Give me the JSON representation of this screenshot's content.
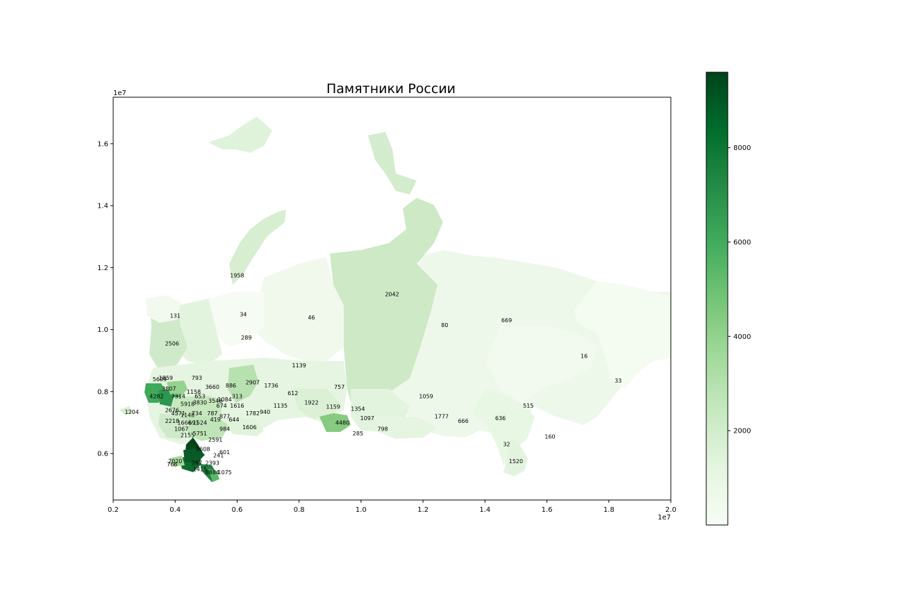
{
  "title": "Памятники России",
  "axes": {
    "x_exponent": "1e7",
    "y_exponent": "1e7",
    "x_ticks": [
      "0.2",
      "0.4",
      "0.6",
      "0.8",
      "1.0",
      "1.2",
      "1.4",
      "1.6",
      "1.8",
      "2.0"
    ],
    "y_ticks": [
      "0.6",
      "0.8",
      "1.0",
      "1.2",
      "1.4",
      "1.6"
    ]
  },
  "colorbar": {
    "ticks": [
      "2000",
      "4000",
      "6000",
      "8000"
    ],
    "min": 0,
    "max": 9600,
    "colormap": "Greens",
    "color_stops": [
      "#f7fcf5",
      "#e5f5e0",
      "#c7e9c0",
      "#a1d99b",
      "#74c476",
      "#41ab5d",
      "#238b45",
      "#006d2c",
      "#00441b"
    ]
  },
  "chart_data": {
    "type": "choropleth",
    "title": "Памятники России",
    "x_range": [
      2000000,
      20000000
    ],
    "y_range": [
      4500000,
      17500000
    ],
    "value_range": [
      0,
      9600
    ],
    "region_values": [
      {
        "value": "1958",
        "x": 6000000.0,
        "y": 11750000.0
      },
      {
        "value": "2042",
        "x": 11000000.0,
        "y": 11150000.0
      },
      {
        "value": "131",
        "x": 4000000.0,
        "y": 10450000.0
      },
      {
        "value": "34",
        "x": 6200000.0,
        "y": 10500000.0
      },
      {
        "value": "46",
        "x": 8400000.0,
        "y": 10400000.0
      },
      {
        "value": "80",
        "x": 12700000.0,
        "y": 10150000.0
      },
      {
        "value": "669",
        "x": 14700000.0,
        "y": 10300000.0
      },
      {
        "value": "289",
        "x": 6300000.0,
        "y": 9750000.0
      },
      {
        "value": "2506",
        "x": 3900000.0,
        "y": 9550000.0
      },
      {
        "value": "16",
        "x": 17200000.0,
        "y": 9150000.0
      },
      {
        "value": "1139",
        "x": 8000000.0,
        "y": 8850000.0
      },
      {
        "value": "33",
        "x": 18300000.0,
        "y": 8350000.0
      },
      {
        "value": "5609",
        "x": 3500000.0,
        "y": 8400000.0
      },
      {
        "value": "1859",
        "x": 3700000.0,
        "y": 8450000.0
      },
      {
        "value": "793",
        "x": 4700000.0,
        "y": 8450000.0
      },
      {
        "value": "2907",
        "x": 6500000.0,
        "y": 8300000.0
      },
      {
        "value": "1736",
        "x": 7100000.0,
        "y": 8200000.0
      },
      {
        "value": "757",
        "x": 9300000.0,
        "y": 8150000.0
      },
      {
        "value": "886",
        "x": 5800000.0,
        "y": 8200000.0
      },
      {
        "value": "3660",
        "x": 5200000.0,
        "y": 8150000.0
      },
      {
        "value": "3807",
        "x": 3800000.0,
        "y": 8100000.0
      },
      {
        "value": "1158",
        "x": 4600000.0,
        "y": 8000000.0
      },
      {
        "value": "612",
        "x": 7800000.0,
        "y": 7950000.0
      },
      {
        "value": "1059",
        "x": 12100000.0,
        "y": 7850000.0
      },
      {
        "value": "4282",
        "x": 3400000.0,
        "y": 7850000.0
      },
      {
        "value": "7314",
        "x": 4100000.0,
        "y": 7850000.0
      },
      {
        "value": "653",
        "x": 4800000.0,
        "y": 7850000.0
      },
      {
        "value": "313",
        "x": 6000000.0,
        "y": 7850000.0
      },
      {
        "value": "1084",
        "x": 5600000.0,
        "y": 7750000.0
      },
      {
        "value": "3546",
        "x": 5300000.0,
        "y": 7700000.0
      },
      {
        "value": "1922",
        "x": 8400000.0,
        "y": 7650000.0
      },
      {
        "value": "5918",
        "x": 4400000.0,
        "y": 7600000.0
      },
      {
        "value": "3830",
        "x": 4800000.0,
        "y": 7650000.0
      },
      {
        "value": "674",
        "x": 5500000.0,
        "y": 7550000.0
      },
      {
        "value": "1616",
        "x": 6000000.0,
        "y": 7550000.0
      },
      {
        "value": "1135",
        "x": 7400000.0,
        "y": 7550000.0
      },
      {
        "value": "1159",
        "x": 9100000.0,
        "y": 7520000.0
      },
      {
        "value": "515",
        "x": 15400000.0,
        "y": 7550000.0
      },
      {
        "value": "1204",
        "x": 2600000.0,
        "y": 7350000.0
      },
      {
        "value": "2676",
        "x": 3900000.0,
        "y": 7400000.0
      },
      {
        "value": "1354",
        "x": 9900000.0,
        "y": 7450000.0
      },
      {
        "value": "4571",
        "x": 4100000.0,
        "y": 7300000.0
      },
      {
        "value": "734",
        "x": 4700000.0,
        "y": 7300000.0
      },
      {
        "value": "787",
        "x": 5200000.0,
        "y": 7300000.0
      },
      {
        "value": "1782",
        "x": 6500000.0,
        "y": 7300000.0
      },
      {
        "value": "940",
        "x": 6900000.0,
        "y": 7350000.0
      },
      {
        "value": "1148",
        "x": 4400000.0,
        "y": 7250000.0
      },
      {
        "value": "877",
        "x": 5600000.0,
        "y": 7200000.0
      },
      {
        "value": "1777",
        "x": 12600000.0,
        "y": 7200000.0
      },
      {
        "value": "636",
        "x": 14500000.0,
        "y": 7150000.0
      },
      {
        "value": "2218",
        "x": 3900000.0,
        "y": 7050000.0
      },
      {
        "value": "1666",
        "x": 4300000.0,
        "y": 7000000.0
      },
      {
        "value": "691",
        "x": 4600000.0,
        "y": 7000000.0
      },
      {
        "value": "1524",
        "x": 4800000.0,
        "y": 7000000.0
      },
      {
        "value": "419",
        "x": 5300000.0,
        "y": 7100000.0
      },
      {
        "value": "644",
        "x": 5900000.0,
        "y": 7100000.0
      },
      {
        "value": "1097",
        "x": 10200000.0,
        "y": 7150000.0
      },
      {
        "value": "666",
        "x": 13300000.0,
        "y": 7050000.0
      },
      {
        "value": "4480",
        "x": 9400000.0,
        "y": 7000000.0
      },
      {
        "value": "1606",
        "x": 6400000.0,
        "y": 6850000.0
      },
      {
        "value": "1067",
        "x": 4200000.0,
        "y": 6800000.0
      },
      {
        "value": "984",
        "x": 5600000.0,
        "y": 6800000.0
      },
      {
        "value": "798",
        "x": 10700000.0,
        "y": 6800000.0
      },
      {
        "value": "2155",
        "x": 4400000.0,
        "y": 6600000.0
      },
      {
        "value": "5751",
        "x": 4800000.0,
        "y": 6650000.0
      },
      {
        "value": "285",
        "x": 9900000.0,
        "y": 6650000.0
      },
      {
        "value": "160",
        "x": 16100000.0,
        "y": 6550000.0
      },
      {
        "value": "2591",
        "x": 5300000.0,
        "y": 6450000.0
      },
      {
        "value": "32",
        "x": 14700000.0,
        "y": 6300000.0
      },
      {
        "value": "9608",
        "x": 4900000.0,
        "y": 6150000.0
      },
      {
        "value": "601",
        "x": 5600000.0,
        "y": 6050000.0
      },
      {
        "value": "241",
        "x": 5400000.0,
        "y": 5950000.0
      },
      {
        "value": "2020",
        "x": 4000000.0,
        "y": 5750000.0
      },
      {
        "value": "766",
        "x": 3900000.0,
        "y": 5650000.0
      },
      {
        "value": "2393",
        "x": 5200000.0,
        "y": 5700000.0
      },
      {
        "value": "297",
        "x": 4700000.0,
        "y": 5700000.0
      },
      {
        "value": "1520",
        "x": 15000000.0,
        "y": 5750000.0
      },
      {
        "value": "1415",
        "x": 4800000.0,
        "y": 5500000.0
      },
      {
        "value": "8884",
        "x": 5200000.0,
        "y": 5400000.0
      },
      {
        "value": "1075",
        "x": 5600000.0,
        "y": 5400000.0
      }
    ]
  }
}
